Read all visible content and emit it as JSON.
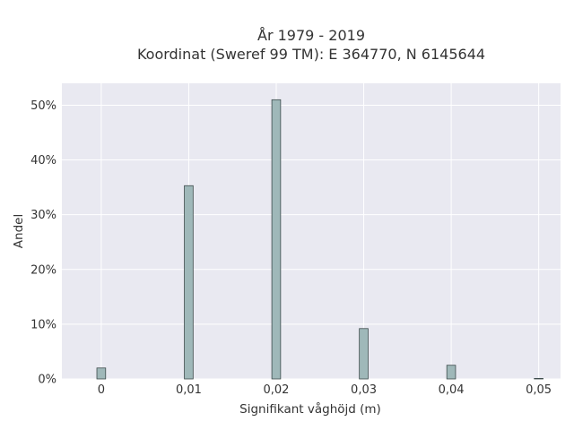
{
  "chart_data": {
    "type": "bar",
    "title": "År 1979 - 2019",
    "subtitle": "Koordinat (Sweref 99 TM): E 364770, N 6145644",
    "xlabel": "Signifikant våghöjd (m)",
    "ylabel": "Andel",
    "x_ticks": [
      "0",
      "0,01",
      "0,02",
      "0,03",
      "0,04",
      "0,05"
    ],
    "y_ticks": [
      "0%",
      "10%",
      "20%",
      "30%",
      "40%",
      "50%"
    ],
    "xlim": [
      -0.0045,
      0.0525
    ],
    "ylim": [
      0,
      0.54
    ],
    "grid": true,
    "bin_width": 0.001,
    "bars": [
      {
        "x": 0.0,
        "value": 0.02
      },
      {
        "x": 0.01,
        "value": 0.353
      },
      {
        "x": 0.02,
        "value": 0.51
      },
      {
        "x": 0.03,
        "value": 0.092
      },
      {
        "x": 0.04,
        "value": 0.025
      },
      {
        "x": 0.05,
        "value": 0.001
      }
    ],
    "colors": {
      "bar_fill": "#9fb8b9",
      "bar_stroke": "#3d4b4b",
      "plot_background": "#e9e9f1",
      "grid": "#ffffff",
      "text": "#333333"
    }
  }
}
